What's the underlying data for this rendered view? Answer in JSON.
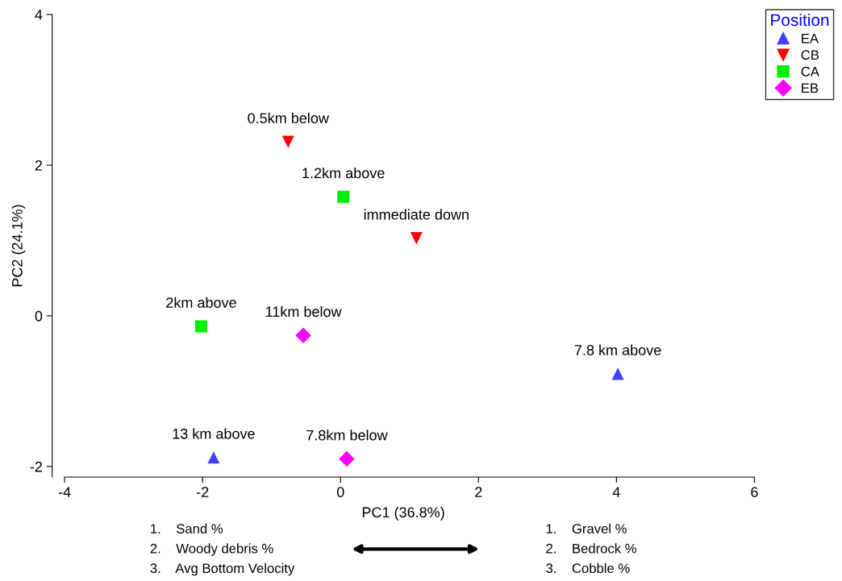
{
  "chart_data": {
    "type": "scatter",
    "xlabel": "PC1 (36.8%)",
    "ylabel": "PC2 (24.1%)",
    "legend_title": "Position",
    "legend": "top right",
    "grid": false,
    "xlim": [
      -4.18,
      6
    ],
    "xticks": [
      -4,
      -2,
      0,
      2,
      4,
      6
    ],
    "ylim": [
      -2.14,
      4
    ],
    "yticks": [
      {
        "value": -2,
        "label": "-2"
      },
      0,
      2,
      4
    ],
    "series": [
      {
        "name": "EA",
        "color": "#4040ff",
        "marker": "triangle",
        "x": [
          -1.84,
          4.02
        ],
        "values": [
          -1.88,
          -0.77
        ]
      },
      {
        "name": "CB",
        "color": "#ff0000",
        "marker": "triangle-down",
        "x": [
          -0.76,
          1.1
        ],
        "values": [
          2.31,
          1.03
        ]
      },
      {
        "name": "CA",
        "color": "#00ee00",
        "marker": "square",
        "x": [
          0.04,
          -2.02
        ],
        "values": [
          1.58,
          -0.14
        ]
      },
      {
        "name": "EB",
        "color": "#ff00ff",
        "marker": "diamond",
        "x": [
          -0.54,
          0.09
        ],
        "values": [
          -0.26,
          -1.9
        ]
      }
    ],
    "annotations": [
      {
        "text": "13 km above",
        "x": -1.84,
        "y": -1.88
      },
      {
        "text": "7.8 km above",
        "x": 4.02,
        "y": -0.77
      },
      {
        "text": "0.5km below",
        "x": -0.76,
        "y": 2.31
      },
      {
        "text": "immediate down",
        "x": 1.1,
        "y": 1.03
      },
      {
        "text": "1.2km above",
        "x": 0.04,
        "y": 1.58
      },
      {
        "text": "2km above",
        "x": -2.02,
        "y": -0.14
      },
      {
        "text": "11km below",
        "x": -0.54,
        "y": -0.26
      },
      {
        "text": "7.8km below",
        "x": 0.09,
        "y": -1.9
      },
      "1.    Sand %",
      "2.    Woody debris %",
      "3.    Avg Bottom Velocity",
      "1.    Gravel %",
      "2.    Bedrock %",
      "3.    Cobble %"
    ]
  }
}
